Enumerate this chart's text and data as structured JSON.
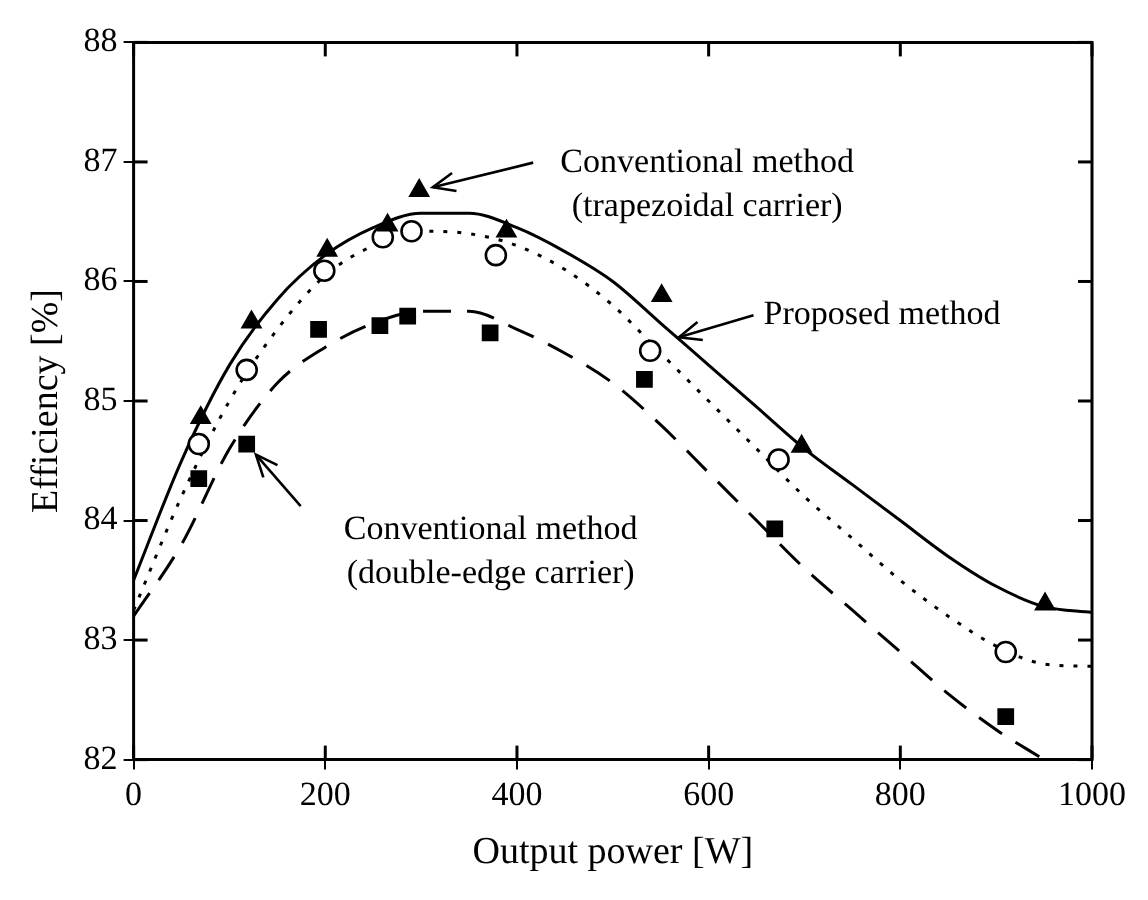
{
  "chart_data": {
    "type": "scatter",
    "xlabel": "Output power [W]",
    "ylabel": "Efficiency [%]",
    "xlim": [
      0,
      1000
    ],
    "ylim": [
      82,
      88
    ],
    "xticks": [
      0,
      200,
      400,
      600,
      800,
      1000
    ],
    "yticks": [
      82,
      83,
      84,
      85,
      86,
      87,
      88
    ],
    "grid": false,
    "legend": false,
    "series": [
      {
        "marker": "triangle",
        "color": "#000000",
        "x": [
          70,
          123,
          202,
          265,
          298,
          389,
          551,
          697,
          951
        ],
        "values": [
          84.86,
          85.66,
          86.26,
          86.47,
          86.76,
          86.42,
          85.88,
          84.62,
          83.3
        ]
      },
      {
        "marker": "circle",
        "color": "#000000",
        "x": [
          68,
          118,
          199,
          260,
          290,
          378,
          539,
          673,
          910
        ],
        "values": [
          84.64,
          85.26,
          86.09,
          86.37,
          86.42,
          86.22,
          85.42,
          84.51,
          82.9
        ]
      },
      {
        "marker": "square",
        "color": "#000000",
        "x": [
          68,
          118,
          193,
          257,
          286,
          372,
          533,
          669,
          910
        ],
        "values": [
          84.35,
          84.64,
          85.6,
          85.63,
          85.71,
          85.57,
          85.18,
          83.93,
          82.36
        ]
      },
      {
        "type": "line",
        "line_style": "solid",
        "marker": "none",
        "color": "#000000",
        "x": [
          0,
          50,
          100,
          150,
          200,
          250,
          300,
          350,
          400,
          450,
          500,
          550,
          600,
          650,
          700,
          750,
          800,
          850,
          900,
          950,
          1000
        ],
        "values": [
          83.5,
          84.5,
          85.3,
          85.85,
          86.22,
          86.45,
          86.57,
          86.57,
          86.45,
          86.25,
          86.0,
          85.65,
          85.3,
          84.95,
          84.6,
          84.3,
          84.0,
          83.7,
          83.45,
          83.28,
          83.23
        ]
      },
      {
        "type": "line",
        "line_style": "dotted",
        "marker": "none",
        "color": "#000000",
        "x": [
          0,
          50,
          100,
          150,
          200,
          250,
          300,
          350,
          400,
          450,
          500,
          550,
          600,
          650,
          700,
          750,
          800,
          850,
          900,
          950,
          1000
        ],
        "values": [
          83.25,
          84.2,
          85.0,
          85.6,
          86.05,
          86.3,
          86.42,
          86.4,
          86.3,
          86.1,
          85.8,
          85.4,
          85.0,
          84.6,
          84.2,
          83.85,
          83.5,
          83.2,
          82.95,
          82.8,
          82.78
        ]
      },
      {
        "type": "line",
        "line_style": "dashed",
        "marker": "none",
        "color": "#000000",
        "x": [
          0,
          50,
          100,
          150,
          200,
          250,
          300,
          350,
          400,
          450,
          500,
          550,
          600,
          650,
          700,
          750,
          800,
          850,
          900,
          950
        ],
        "values": [
          83.2,
          83.8,
          84.6,
          85.15,
          85.45,
          85.65,
          85.75,
          85.75,
          85.6,
          85.4,
          85.15,
          84.8,
          84.4,
          84.0,
          83.6,
          83.25,
          82.9,
          82.55,
          82.25,
          82.0
        ]
      }
    ],
    "annotations": [
      {
        "text": "Conventional method\n(trapezoidal carrier)",
        "x": 298,
        "y": 86.76
      },
      {
        "text": "Proposed method",
        "x": 555,
        "y": 85.5
      },
      {
        "text": "Conventional method\n(double-edge carrier)",
        "x": 118,
        "y": 84.64
      }
    ]
  }
}
